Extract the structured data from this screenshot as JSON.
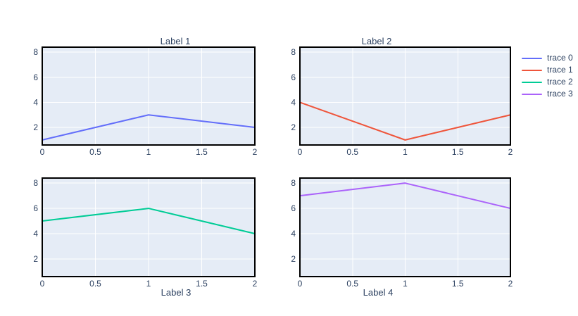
{
  "figure": {
    "bg_color": "#ffffff",
    "plot_bg_color": "#e5ecf6",
    "grid_color": "#ffffff",
    "axis_line_color": "#000000",
    "text_color": "#2a3f5f"
  },
  "legend": {
    "position": "right",
    "items": [
      {
        "label": "trace 0",
        "color": "#636efa"
      },
      {
        "label": "trace 1",
        "color": "#ef553b"
      },
      {
        "label": "trace 2",
        "color": "#00cc96"
      },
      {
        "label": "trace 3",
        "color": "#ab63fa"
      }
    ]
  },
  "chart_data": [
    {
      "type": "line",
      "title": "Label 1",
      "title_side": "top",
      "x": [
        0,
        1,
        2
      ],
      "series": [
        {
          "name": "trace 0",
          "color": "#636efa",
          "values": [
            1,
            3,
            2
          ]
        }
      ],
      "xlim": [
        0,
        2
      ],
      "ylim": [
        0.6,
        8.4
      ],
      "xtick_values": [
        0,
        0.5,
        1,
        1.5,
        2
      ],
      "xtick_labels": [
        "0",
        "0.5",
        "1",
        "1.5",
        "2"
      ],
      "ytick_values": [
        2,
        4,
        6,
        8
      ],
      "ytick_labels": [
        "2",
        "4",
        "6",
        "8"
      ],
      "grid": true
    },
    {
      "type": "line",
      "title": "Label 2",
      "title_side": "top",
      "x": [
        0,
        1,
        2
      ],
      "series": [
        {
          "name": "trace 1",
          "color": "#ef553b",
          "values": [
            4,
            1,
            3
          ]
        }
      ],
      "xlim": [
        0,
        2
      ],
      "ylim": [
        0.6,
        8.4
      ],
      "xtick_values": [
        0,
        0.5,
        1,
        1.5,
        2
      ],
      "xtick_labels": [
        "0",
        "0.5",
        "1",
        "1.5",
        "2"
      ],
      "ytick_values": [
        2,
        4,
        6,
        8
      ],
      "ytick_labels": [
        "2",
        "4",
        "6",
        "8"
      ],
      "grid": true
    },
    {
      "type": "line",
      "title": "Label 3",
      "title_side": "bottom",
      "x": [
        0,
        1,
        2
      ],
      "series": [
        {
          "name": "trace 2",
          "color": "#00cc96",
          "values": [
            5,
            6,
            4
          ]
        }
      ],
      "xlim": [
        0,
        2
      ],
      "ylim": [
        0.6,
        8.4
      ],
      "xtick_values": [
        0,
        0.5,
        1,
        1.5,
        2
      ],
      "xtick_labels": [
        "0",
        "0.5",
        "1",
        "1.5",
        "2"
      ],
      "ytick_values": [
        2,
        4,
        6,
        8
      ],
      "ytick_labels": [
        "2",
        "4",
        "6",
        "8"
      ],
      "grid": true
    },
    {
      "type": "line",
      "title": "Label 4",
      "title_side": "bottom",
      "x": [
        0,
        1,
        2
      ],
      "series": [
        {
          "name": "trace 3",
          "color": "#ab63fa",
          "values": [
            7,
            8,
            6
          ]
        }
      ],
      "xlim": [
        0,
        2
      ],
      "ylim": [
        0.6,
        8.4
      ],
      "xtick_values": [
        0,
        0.5,
        1,
        1.5,
        2
      ],
      "xtick_labels": [
        "0",
        "0.5",
        "1",
        "1.5",
        "2"
      ],
      "ytick_values": [
        2,
        4,
        6,
        8
      ],
      "ytick_labels": [
        "2",
        "4",
        "6",
        "8"
      ],
      "grid": true
    }
  ]
}
